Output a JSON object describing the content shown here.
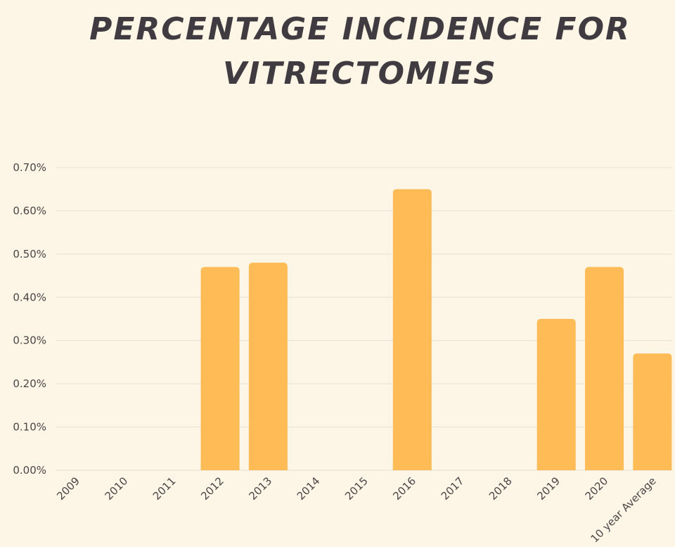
{
  "chart_data": {
    "type": "bar",
    "title_lines": [
      "PERCENTAGE INCIDENCE FOR",
      "VITRECTOMIES"
    ],
    "categories": [
      "2009",
      "2010",
      "2011",
      "2012",
      "2013",
      "2014",
      "2015",
      "2016",
      "2017",
      "2018",
      "2019",
      "2020",
      "10 year Average"
    ],
    "values": [
      0,
      0,
      0,
      0.47,
      0.48,
      0,
      0,
      0.65,
      0,
      0,
      0.35,
      0.47,
      0.27
    ],
    "color": "#ffbb55",
    "ylim": [
      0,
      0.7
    ],
    "yticks": [
      {
        "value": 0,
        "label": "0.00%"
      },
      {
        "value": 0.1,
        "label": "0.10%"
      },
      {
        "value": 0.2,
        "label": "0.20%"
      },
      {
        "value": 0.3,
        "label": "0.30%"
      },
      {
        "value": 0.4,
        "label": "0.40%"
      },
      {
        "value": 0.5,
        "label": "0.50%"
      },
      {
        "value": 0.6,
        "label": "0.60%"
      },
      {
        "value": 0.7,
        "label": "0.70%"
      }
    ],
    "grid": true
  }
}
